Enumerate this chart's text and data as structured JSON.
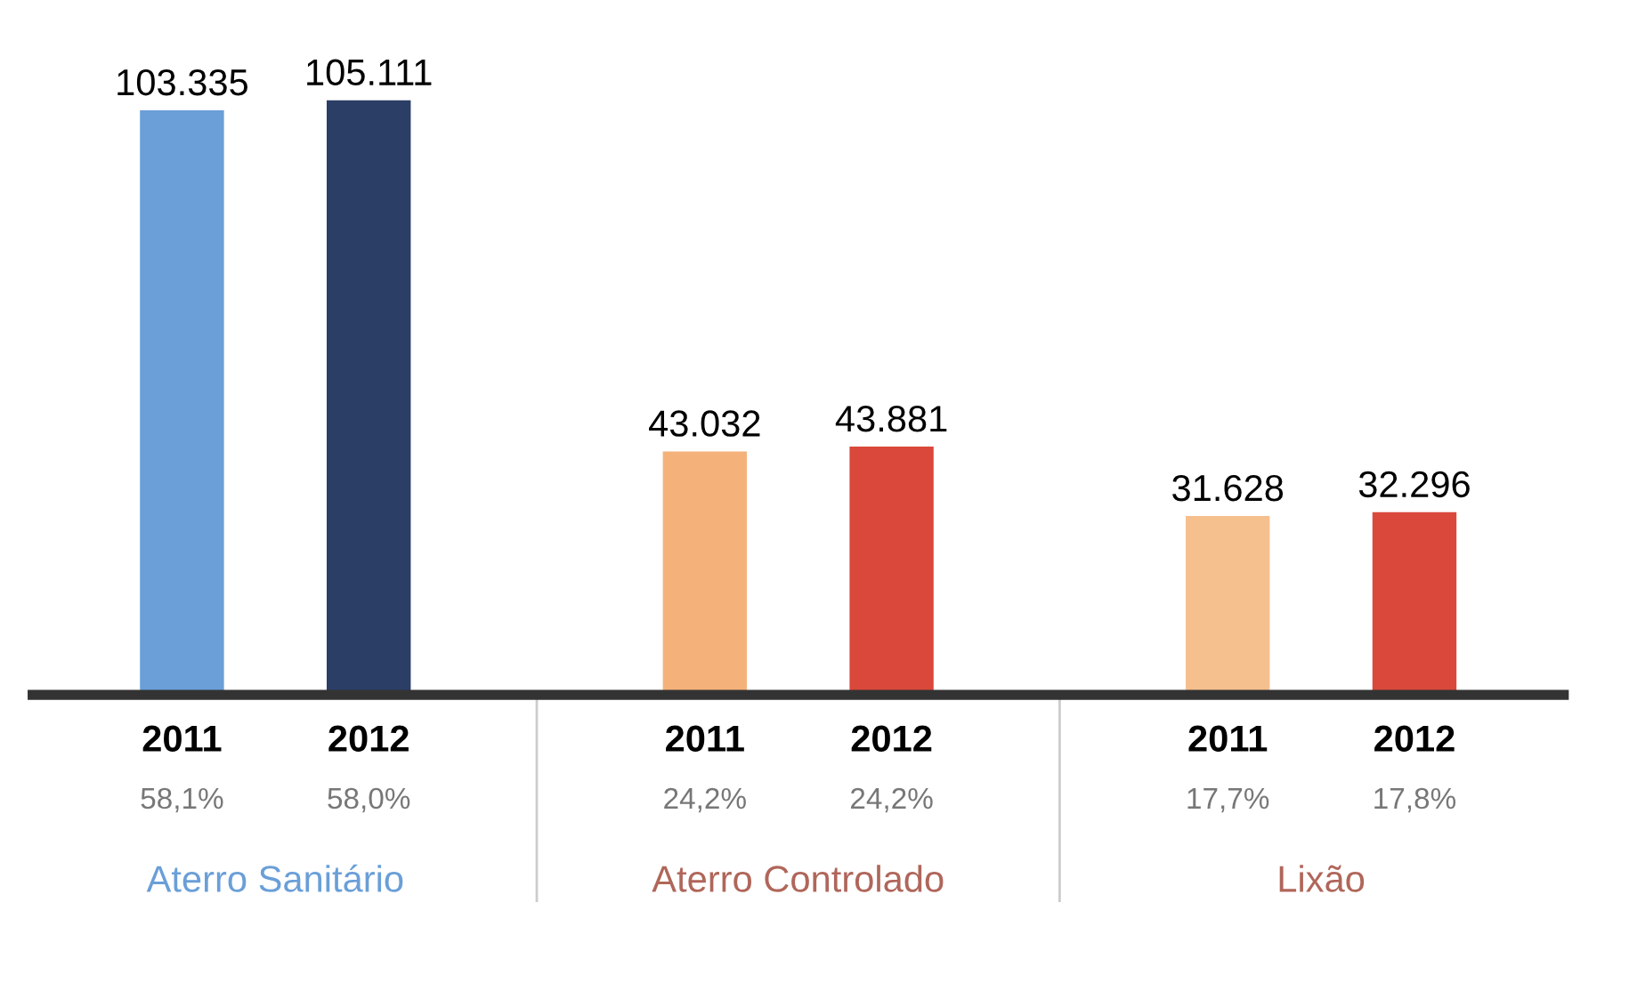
{
  "chart_data": {
    "type": "bar",
    "categories": [
      "2011",
      "2012",
      "2011",
      "2012",
      "2011",
      "2012"
    ],
    "values": [
      103335,
      105111,
      43032,
      43881,
      31628,
      32296
    ],
    "colors": [
      "#6a9fd8",
      "#2b3f66",
      "#f4b27a",
      "#d9483a",
      "#f6bf8e",
      "#d9483a"
    ],
    "value_labels": [
      "103.335",
      "105.111",
      "43.032",
      "43.881",
      "31.628",
      "32.296"
    ],
    "annotations": [
      "58,1%",
      "58,0%",
      "24,2%",
      "24,2%",
      "17,7%",
      "17,8%",
      "Aterro Sanitário",
      "Aterro Controlado",
      "Lixão"
    ]
  }
}
